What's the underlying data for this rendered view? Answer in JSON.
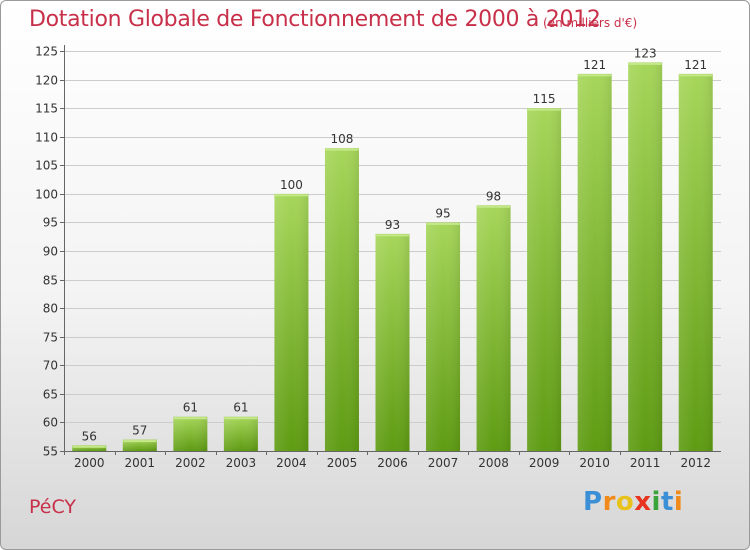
{
  "header": {
    "title": "Dotation Globale de Fonctionnement de 2000 à 2012",
    "unit_note": "(en milliers d'€)"
  },
  "footer": {
    "commune": "PéCY",
    "logo_letters": [
      {
        "ch": "P",
        "color": "#3a8fd6"
      },
      {
        "ch": "r",
        "color": "#f08a1a"
      },
      {
        "ch": "o",
        "color": "#e8c21a"
      },
      {
        "ch": "x",
        "color": "#e8331f"
      },
      {
        "ch": "i",
        "color": "#3aa33a"
      },
      {
        "ch": "t",
        "color": "#3a8fd6"
      },
      {
        "ch": "i",
        "color": "#f08a1a"
      }
    ]
  },
  "colors": {
    "title": "#c8304a",
    "bar_top": "#a6d65a",
    "bar_bottom": "#5e9b12",
    "axis": "#666666",
    "grid": "#cccccc"
  },
  "chart_data": {
    "type": "bar",
    "categories": [
      "2000",
      "2001",
      "2002",
      "2003",
      "2004",
      "2005",
      "2006",
      "2007",
      "2008",
      "2009",
      "2010",
      "2011",
      "2012"
    ],
    "values": [
      56,
      57,
      61,
      61,
      100,
      108,
      93,
      95,
      98,
      115,
      121,
      123,
      121
    ],
    "ylim": [
      55,
      125
    ],
    "yticks": [
      55,
      60,
      65,
      70,
      75,
      80,
      85,
      90,
      95,
      100,
      105,
      110,
      115,
      120,
      125
    ],
    "grid": true,
    "legend": "none"
  }
}
